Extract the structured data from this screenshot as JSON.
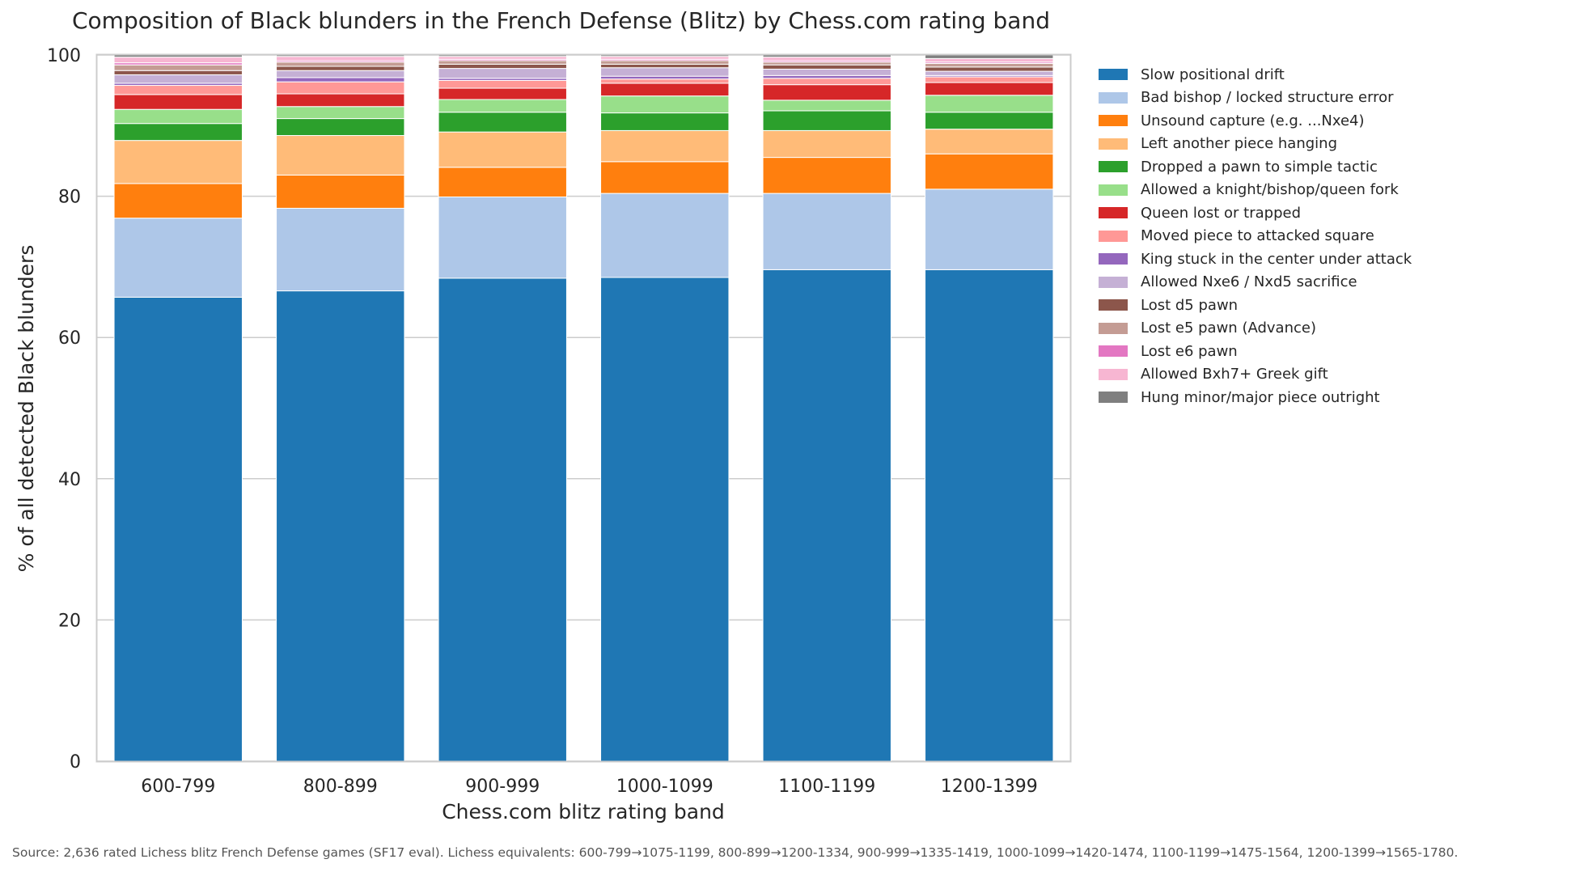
{
  "chart_data": {
    "type": "bar",
    "stacked": true,
    "title": "Composition of Black blunders in the French Defense (Blitz) by Chess.com rating band",
    "xlabel": "Chess.com blitz rating band",
    "ylabel": "% of all detected Black blunders",
    "ylim": [
      0,
      100
    ],
    "yticks": [
      0,
      20,
      40,
      60,
      80,
      100
    ],
    "grid": "horizontal",
    "legend_position": "right",
    "categories": [
      "600-799",
      "800-899",
      "900-999",
      "1000-1099",
      "1100-1199",
      "1200-1399"
    ],
    "series": [
      {
        "name": "Slow positional drift",
        "color": "#1f77b4",
        "values": [
          65.7,
          66.6,
          68.4,
          68.5,
          69.6,
          69.6
        ]
      },
      {
        "name": "Bad bishop / locked structure error",
        "color": "#aec7e8",
        "values": [
          11.2,
          11.7,
          11.5,
          11.9,
          10.8,
          11.4
        ]
      },
      {
        "name": "Unsound capture (e.g. ...Nxe4)",
        "color": "#ff7f0e",
        "values": [
          4.9,
          4.7,
          4.2,
          4.5,
          5.1,
          5.0
        ]
      },
      {
        "name": "Left another piece hanging",
        "color": "#ffbb78",
        "values": [
          6.1,
          5.6,
          5.0,
          4.4,
          3.8,
          3.5
        ]
      },
      {
        "name": "Dropped a pawn to simple tactic",
        "color": "#2ca02c",
        "values": [
          2.4,
          2.4,
          2.8,
          2.5,
          2.8,
          2.4
        ]
      },
      {
        "name": "Allowed a knight/bishop/queen fork",
        "color": "#98df8a",
        "values": [
          2.0,
          1.7,
          1.8,
          2.4,
          1.5,
          2.4
        ]
      },
      {
        "name": "Queen lost or trapped",
        "color": "#d62728",
        "values": [
          2.1,
          1.8,
          1.6,
          1.8,
          2.2,
          1.8
        ]
      },
      {
        "name": "Moved piece to attacked square",
        "color": "#ff9896",
        "values": [
          1.3,
          1.7,
          1.1,
          0.6,
          0.9,
          0.8
        ]
      },
      {
        "name": "King stuck in the center under attack",
        "color": "#9467bd",
        "values": [
          0.3,
          0.6,
          0.3,
          0.4,
          0.4,
          0.2
        ]
      },
      {
        "name": "Allowed Nxe6 / Nxd5 sacrifice",
        "color": "#c5b0d5",
        "values": [
          1.2,
          1.0,
          1.4,
          1.2,
          0.9,
          0.6
        ]
      },
      {
        "name": "Lost d5 pawn",
        "color": "#8c564b",
        "values": [
          0.6,
          0.6,
          0.6,
          0.5,
          0.6,
          0.6
        ]
      },
      {
        "name": "Lost e5 pawn (Advance)",
        "color": "#c49c94",
        "values": [
          0.8,
          0.6,
          0.5,
          0.5,
          0.4,
          0.5
        ]
      },
      {
        "name": "Lost e6 pawn",
        "color": "#e377c2",
        "values": [
          0.3,
          0.2,
          0.2,
          0.2,
          0.2,
          0.2
        ]
      },
      {
        "name": "Allowed Bxh7+ Greek gift",
        "color": "#f7b6d2",
        "values": [
          0.8,
          0.6,
          0.4,
          0.4,
          0.5,
          0.5
        ]
      },
      {
        "name": "Hung minor/major piece outright",
        "color": "#7f7f7f",
        "values": [
          0.3,
          0.2,
          0.2,
          0.2,
          0.3,
          0.5
        ]
      }
    ]
  },
  "footer": {
    "source_note": "Source: 2,636 rated Lichess blitz French Defense games (SF17 eval). Lichess equivalents: 600-799→1075-1199, 800-899→1200-1334, 900-999→1335-1419, 1000-1099→1420-1474, 1100-1199→1475-1564, 1200-1399→1565-1780."
  }
}
